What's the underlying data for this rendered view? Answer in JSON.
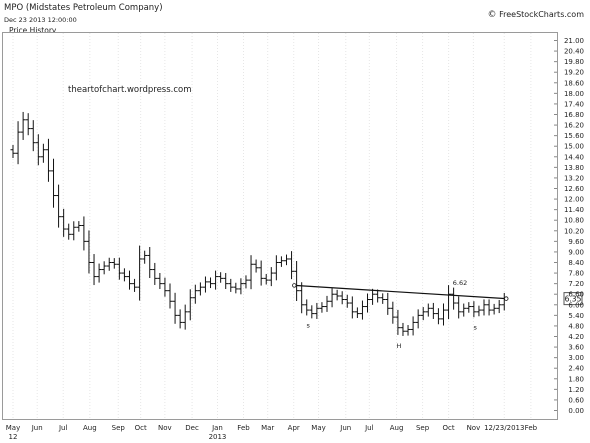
{
  "header": {
    "title": "MPO (Midstates Petroleum Company)",
    "date": "Dec 23 2013 12:00:00",
    "panel_label": "Price History",
    "copyright": "FreeStockCharts.com",
    "copyright_symbol": "©"
  },
  "chart_data": {
    "type": "ohlc",
    "watermark": "theartofchart.wordpress.com",
    "y_ticks": [
      "21.00",
      "20.40",
      "19.80",
      "19.20",
      "18.60",
      "18.00",
      "17.40",
      "16.80",
      "16.20",
      "15.60",
      "15.00",
      "14.40",
      "13.80",
      "13.20",
      "12.60",
      "12.00",
      "11.40",
      "10.80",
      "10.20",
      "9.60",
      "9.00",
      "8.40",
      "7.80",
      "7.20",
      "6.60",
      "6.00",
      "5.40",
      "4.80",
      "4.20",
      "3.60",
      "3.00",
      "2.40",
      "1.80",
      "1.20",
      "0.60",
      "0.00"
    ],
    "ylim": [
      0,
      21
    ],
    "x_ticks": [
      {
        "label": "May",
        "sub": "12",
        "w": 0
      },
      {
        "label": "Jun",
        "sub": "",
        "w": 4
      },
      {
        "label": "Jul",
        "sub": "",
        "w": 8.3
      },
      {
        "label": "Aug",
        "sub": "",
        "w": 12.7
      },
      {
        "label": "Sep",
        "sub": "",
        "w": 17.4
      },
      {
        "label": "Oct",
        "sub": "",
        "w": 21.1
      },
      {
        "label": "Nov",
        "sub": "",
        "w": 25.1
      },
      {
        "label": "Dec",
        "sub": "",
        "w": 29.6
      },
      {
        "label": "Jan",
        "sub": "2013",
        "w": 33.8
      },
      {
        "label": "Feb",
        "sub": "",
        "w": 38.1
      },
      {
        "label": "Mar",
        "sub": "",
        "w": 42.1
      },
      {
        "label": "Apr",
        "sub": "",
        "w": 46.4
      },
      {
        "label": "May",
        "sub": "",
        "w": 50.5
      },
      {
        "label": "Jun",
        "sub": "",
        "w": 55
      },
      {
        "label": "Jul",
        "sub": "",
        "w": 58.9
      },
      {
        "label": "Aug",
        "sub": "",
        "w": 63.4
      },
      {
        "label": "Sep",
        "sub": "",
        "w": 67.7
      },
      {
        "label": "Oct",
        "sub": "",
        "w": 72
      },
      {
        "label": "Nov",
        "sub": "",
        "w": 76.1
      },
      {
        "label": "12/23/2013",
        "sub": "",
        "w": 81.2
      },
      {
        "label": "Feb",
        "sub": "",
        "w": 85.6
      }
    ],
    "weekly_closes": [
      14.6,
      15.8,
      16.5,
      16.0,
      15.2,
      14.4,
      14.8,
      13.6,
      12.2,
      11.0,
      10.3,
      10.0,
      10.4,
      10.5,
      9.6,
      8.4,
      7.6,
      8.0,
      8.2,
      8.4,
      8.3,
      7.8,
      7.6,
      7.2,
      7.0,
      8.6,
      8.8,
      8.0,
      7.5,
      7.2,
      6.8,
      6.2,
      5.4,
      5.0,
      5.6,
      6.4,
      6.8,
      7.0,
      7.3,
      7.2,
      7.6,
      7.5,
      7.2,
      7.0,
      6.9,
      7.2,
      7.4,
      8.3,
      8.1,
      7.5,
      7.4,
      7.8,
      8.4,
      8.5,
      8.6,
      7.9,
      6.8,
      6.0,
      5.7,
      5.5,
      5.8,
      5.9,
      6.2,
      6.6,
      6.5,
      6.3,
      6.1,
      5.6,
      5.5,
      5.9,
      6.3,
      6.6,
      6.4,
      6.3,
      5.8,
      5.3,
      4.7,
      4.5,
      4.6,
      5.0,
      5.4,
      5.6,
      5.8,
      5.5,
      5.2,
      5.7,
      6.6,
      6.1,
      5.6,
      5.8,
      5.9,
      5.6,
      5.7,
      6.0,
      5.7,
      5.8,
      6.0,
      6.35
    ],
    "last_price": "6.35",
    "annotations": {
      "high_label": "6.62",
      "s_left": "s",
      "head": "H",
      "s_right": "s"
    },
    "neckline": {
      "start": {
        "w": 46.5,
        "price": 7.1
      },
      "end": {
        "w": 81.2,
        "price": 6.35
      }
    },
    "high_marker": {
      "w": 72.2,
      "price": 6.62
    }
  }
}
